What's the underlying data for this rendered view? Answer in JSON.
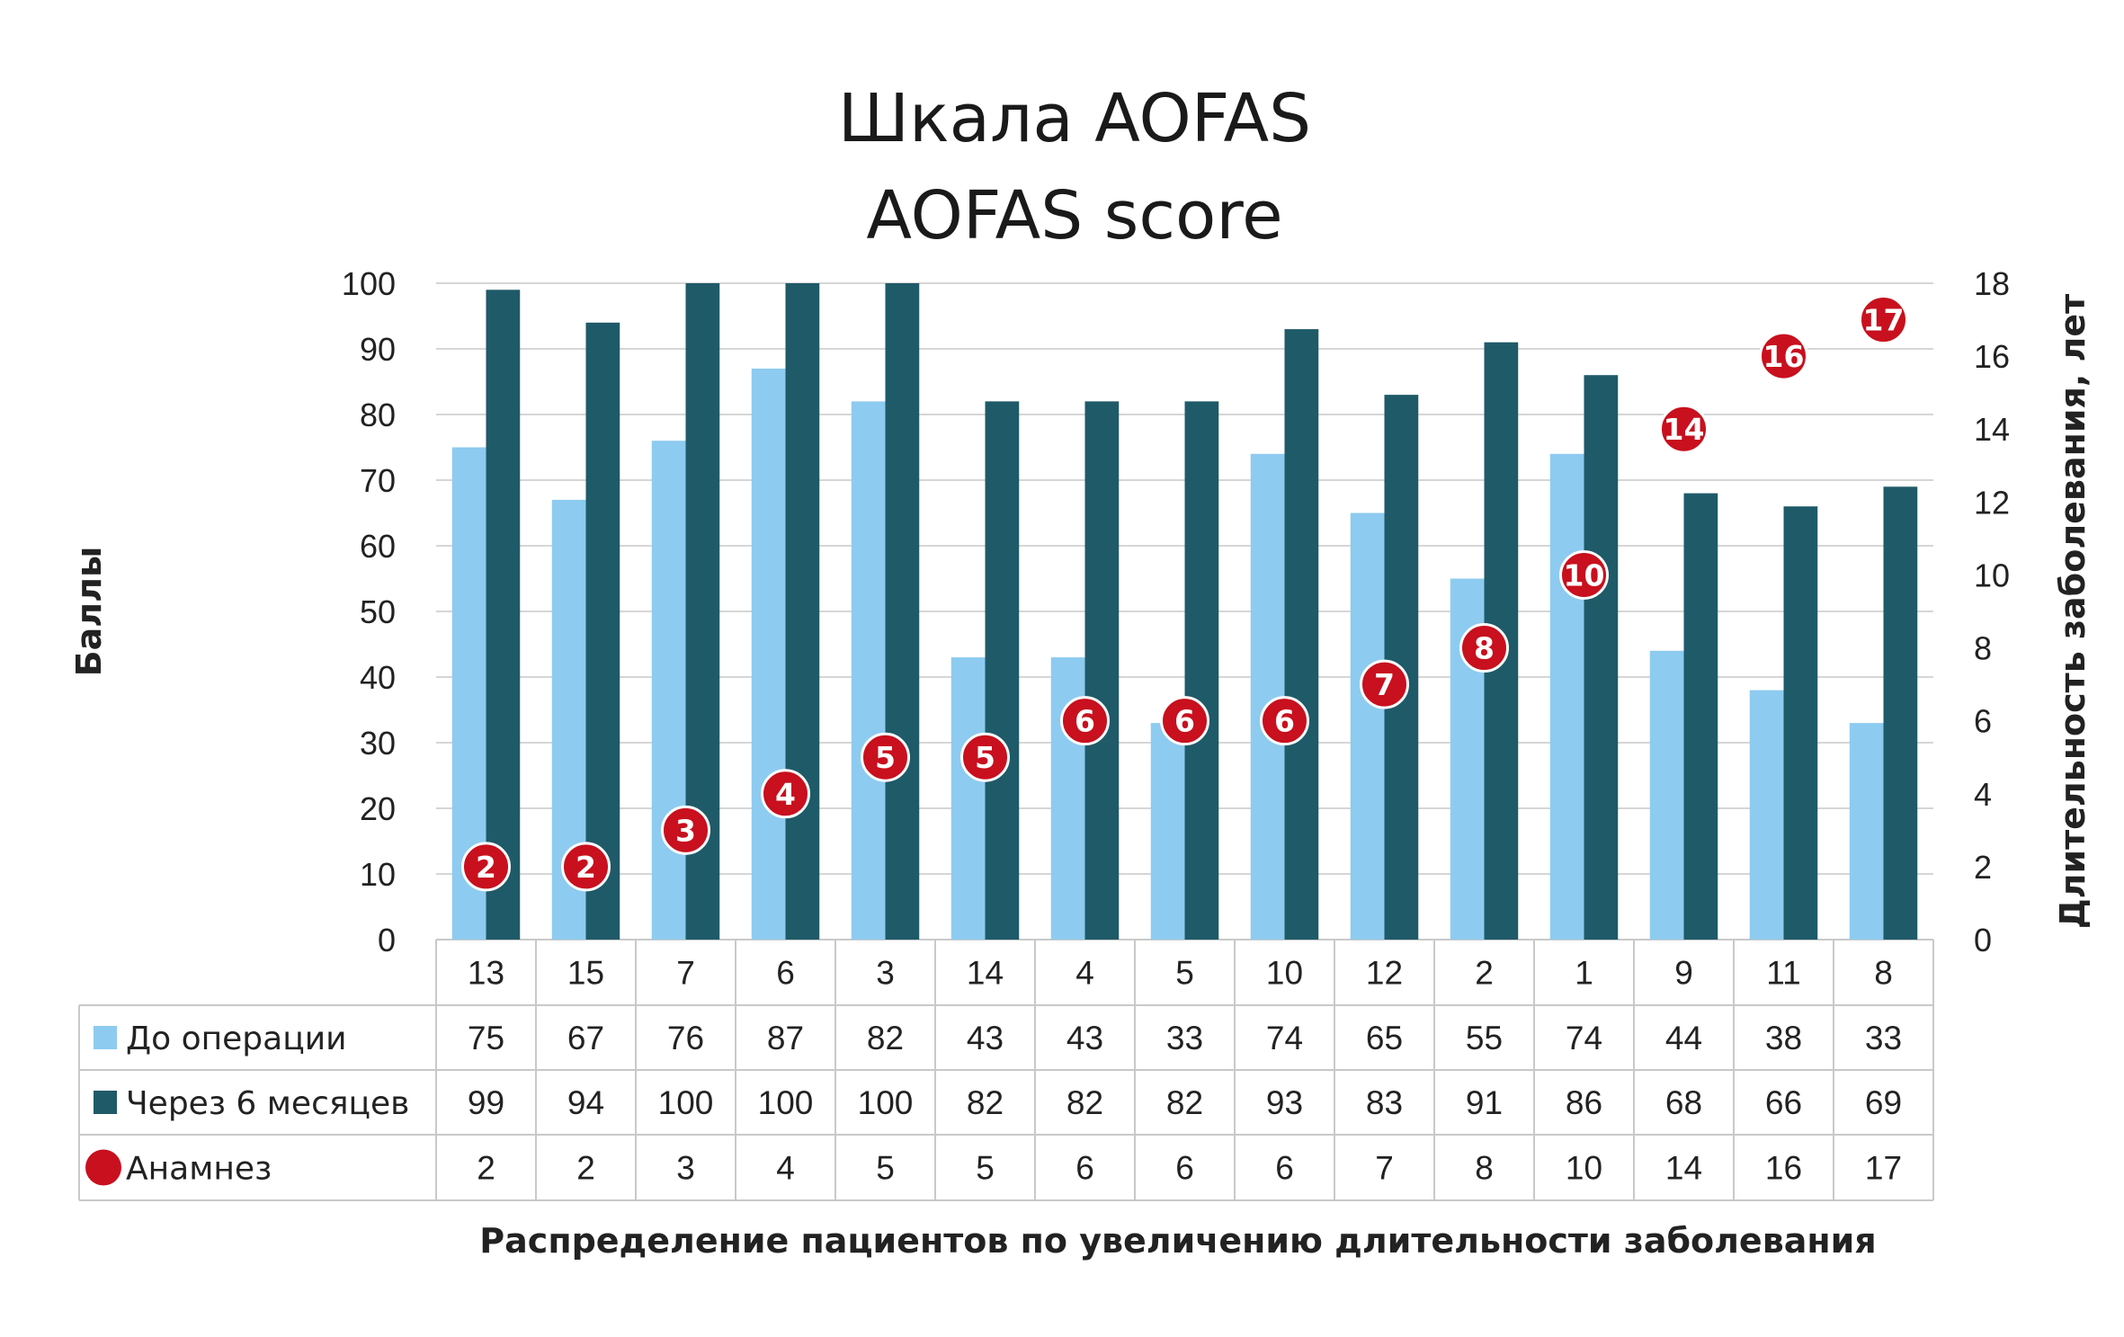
{
  "chart_data": {
    "type": "bar",
    "title": "Шкала AOFAS",
    "subtitle": "AOFAS score",
    "xlabel": "Распределение пациентов по увеличению длительности заболевания",
    "ylabel": "Баллы",
    "y2label": "Длительность заболевания, лет",
    "ylim": [
      0,
      100
    ],
    "y2lim": [
      0,
      18
    ],
    "yticks": [
      "0",
      "10",
      "20",
      "30",
      "40",
      "50",
      "60",
      "70",
      "80",
      "90",
      "100"
    ],
    "y2ticks": [
      "0",
      "2",
      "4",
      "6",
      "8",
      "10",
      "12",
      "14",
      "16",
      "18"
    ],
    "grid": true,
    "legend": "table-left",
    "categories": [
      "13",
      "15",
      "7",
      "6",
      "3",
      "14",
      "4",
      "5",
      "10",
      "12",
      "2",
      "1",
      "9",
      "11",
      "8"
    ],
    "series": [
      {
        "name": "До операции",
        "type": "bar",
        "color": "#8ecbf0",
        "values": [
          75,
          67,
          76,
          87,
          82,
          43,
          43,
          33,
          74,
          65,
          55,
          74,
          44,
          38,
          33
        ]
      },
      {
        "name": "Через 6 месяцев",
        "type": "bar",
        "color": "#1f5a68",
        "values": [
          99,
          94,
          100,
          100,
          100,
          82,
          82,
          82,
          93,
          83,
          91,
          86,
          68,
          66,
          69
        ]
      },
      {
        "name": "Анамнез",
        "type": "scatter",
        "axis": "secondary",
        "color": "#c8101e",
        "values": [
          2,
          2,
          3,
          4,
          5,
          5,
          6,
          6,
          6,
          7,
          8,
          10,
          14,
          16,
          17
        ]
      }
    ]
  }
}
